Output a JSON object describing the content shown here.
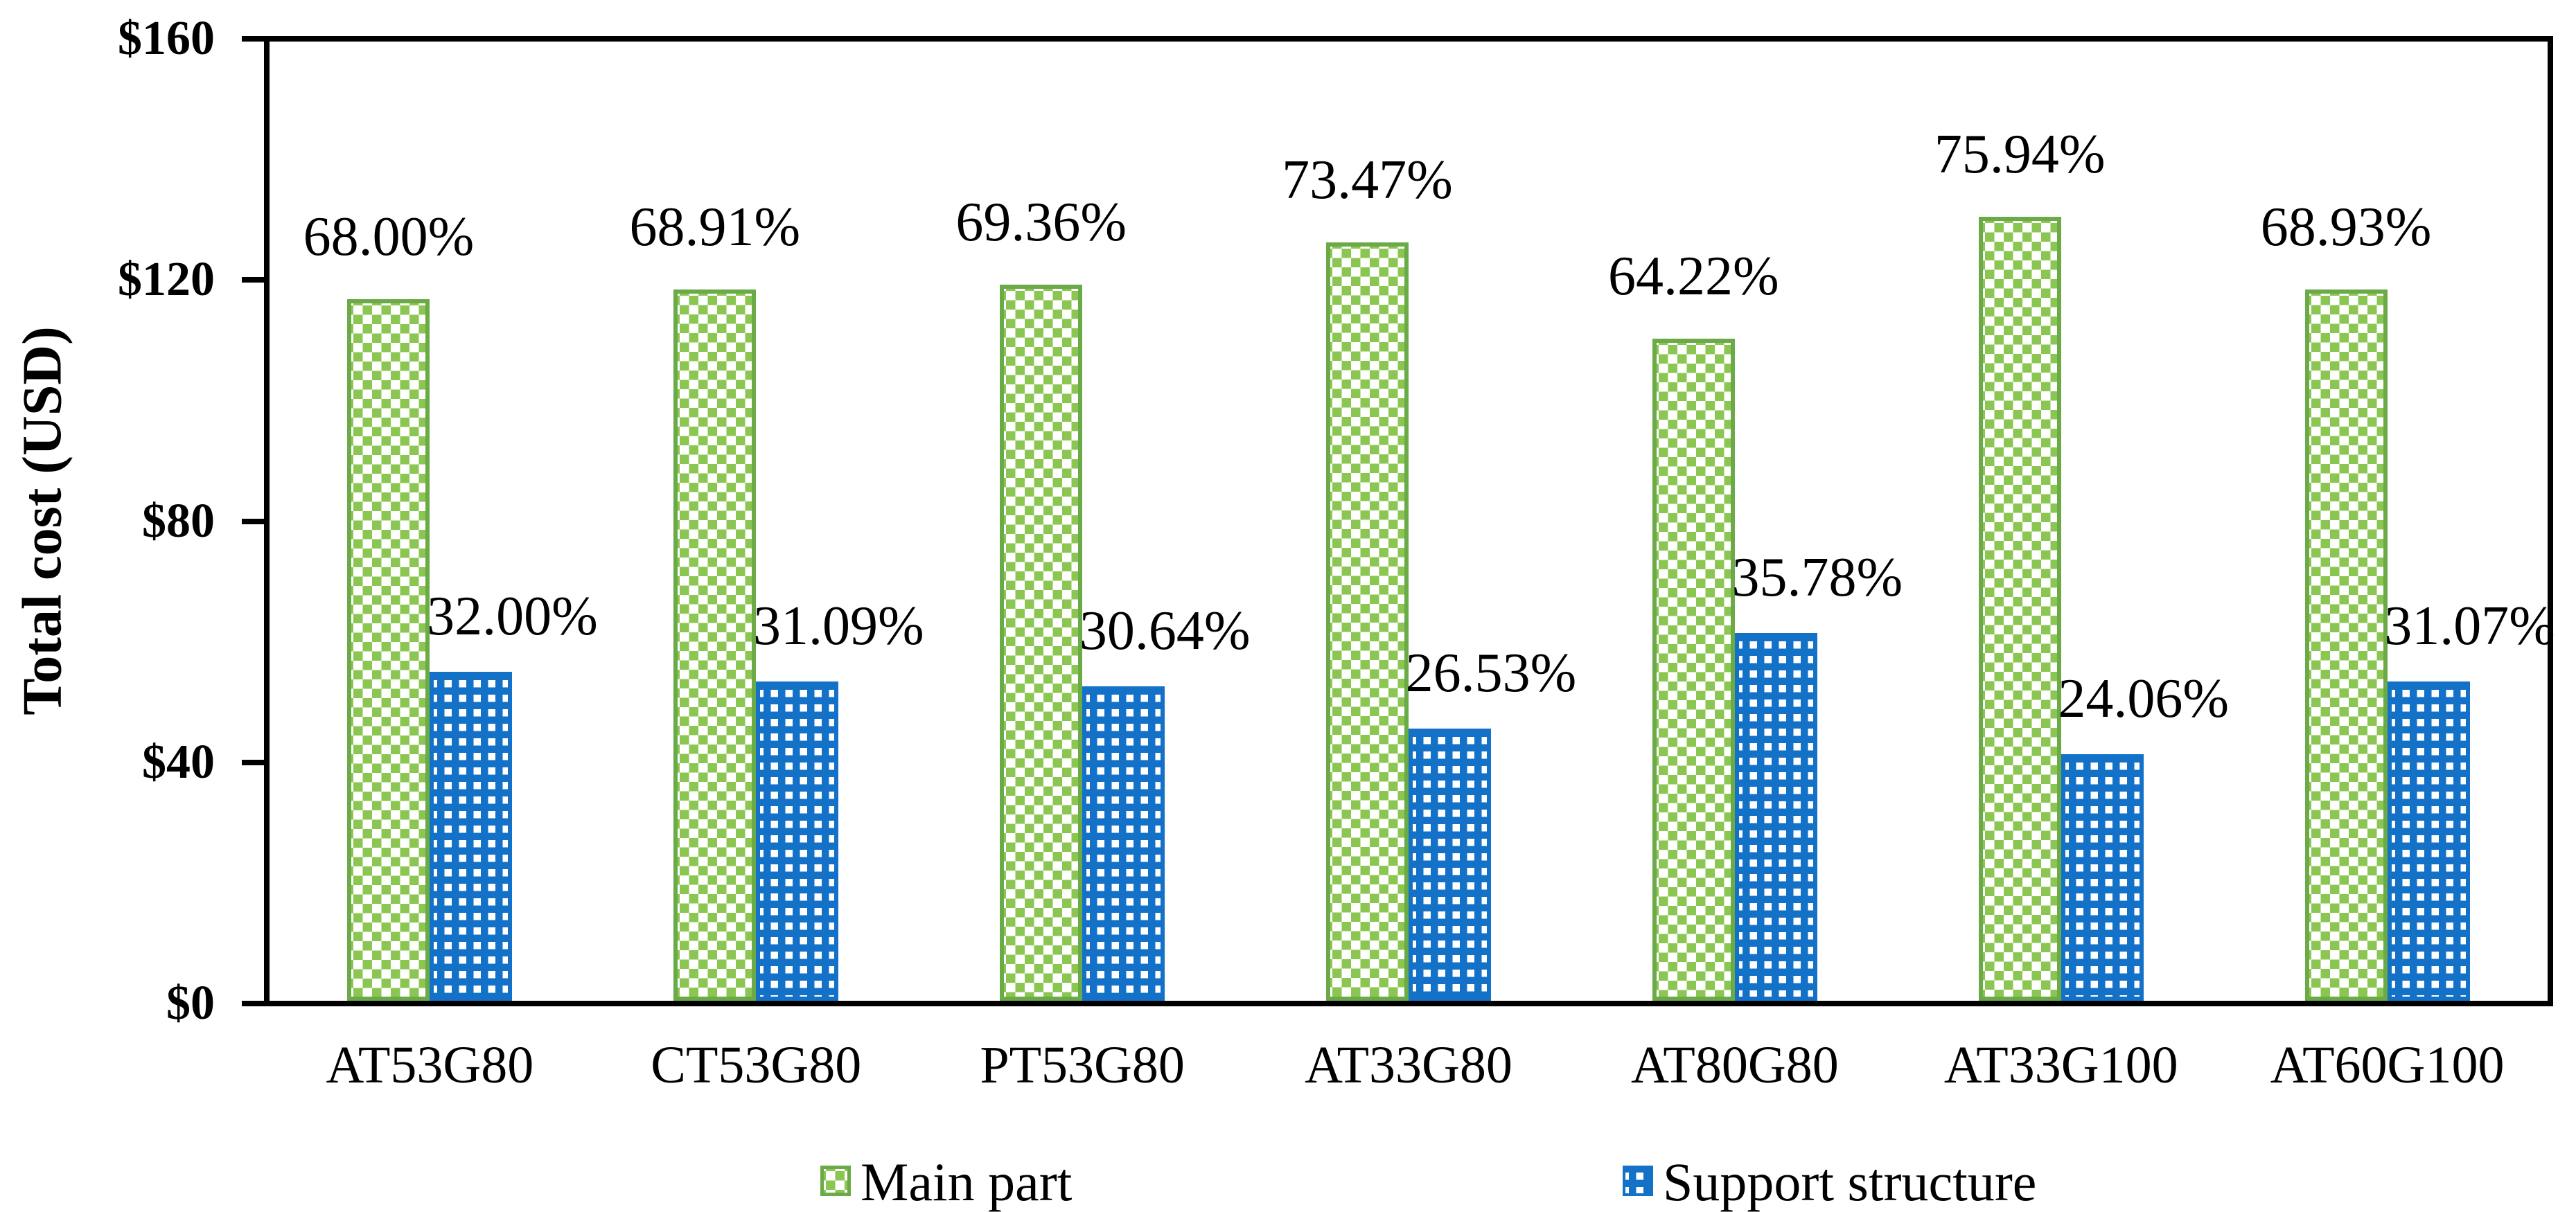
{
  "colors": {
    "main_dot": "#8CC652",
    "main_border": "#6AAA47",
    "support_fill": "#1371C8",
    "support_dot": "#FFFFFF",
    "axis": "#000000",
    "text": "#000000"
  },
  "chart_data": {
    "type": "bar",
    "title": "",
    "xlabel": "",
    "ylabel": "Total cost (USD)",
    "ylim": [
      0,
      160
    ],
    "grid": false,
    "legend_position": "bottom",
    "yticks": [
      {
        "label": "$0",
        "value": 0
      },
      {
        "label": "$40",
        "value": 40
      },
      {
        "label": "$80",
        "value": 80
      },
      {
        "label": "$120",
        "value": 120
      },
      {
        "label": "$160",
        "value": 160
      }
    ],
    "categories": [
      "AT53G80",
      "CT53G80",
      "PT53G80",
      "AT33G80",
      "AT80G80",
      "AT33G100",
      "AT60G100"
    ],
    "series": [
      {
        "name": "Main part",
        "values": [
          116.8,
          118.4,
          119.2,
          126.2,
          110.3,
          130.5,
          118.4
        ],
        "data_labels": [
          "68.00%",
          "68.91%",
          "69.36%",
          "73.47%",
          "64.22%",
          "75.94%",
          "68.93%"
        ]
      },
      {
        "name": "Support structure",
        "values": [
          55.0,
          53.4,
          52.6,
          45.6,
          61.5,
          41.3,
          53.4
        ],
        "data_labels": [
          "32.00%",
          "31.09%",
          "30.64%",
          "26.53%",
          "35.78%",
          "24.06%",
          "31.07%"
        ]
      }
    ]
  }
}
